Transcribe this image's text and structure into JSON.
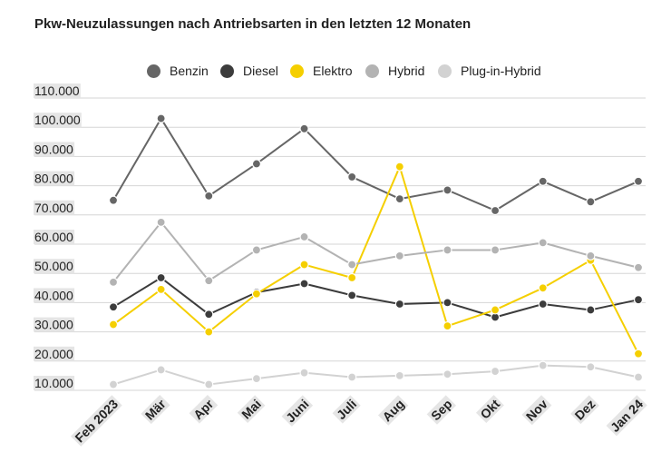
{
  "chart_data": {
    "type": "line",
    "title": "Pkw-Neuzulassungen nach Antriebsarten in den letzten 12 Monaten",
    "categories": [
      "Feb 2023",
      "Mär",
      "Apr",
      "Mai",
      "Juni",
      "Juli",
      "Aug",
      "Sep",
      "Okt",
      "Nov",
      "Dez",
      "Jan 24"
    ],
    "yticks": [
      "10.000",
      "20.000",
      "30.000",
      "40.000",
      "50.000",
      "60.000",
      "70.000",
      "80.000",
      "90.000",
      "100.000",
      "110.000"
    ],
    "ylim": [
      10000,
      110000
    ],
    "grid": true,
    "legend_position": "top",
    "series": [
      {
        "name": "Benzin",
        "color": "#666666",
        "values": [
          75000,
          103000,
          76500,
          87500,
          99500,
          83000,
          75500,
          78500,
          71500,
          81500,
          74500,
          81500
        ]
      },
      {
        "name": "Diesel",
        "color": "#3c3c3c",
        "values": [
          38500,
          48500,
          36000,
          43500,
          46500,
          42500,
          39500,
          40000,
          35000,
          39500,
          37500,
          41000
        ]
      },
      {
        "name": "Elektro",
        "color": "#f5cf00",
        "values": [
          32500,
          44500,
          30000,
          43000,
          53000,
          48500,
          86500,
          32000,
          37500,
          45000,
          54500,
          22500
        ]
      },
      {
        "name": "Hybrid",
        "color": "#b3b3b3",
        "values": [
          47000,
          67500,
          47500,
          58000,
          62500,
          53000,
          56000,
          58000,
          58000,
          60500,
          56000,
          52000
        ]
      },
      {
        "name": "Plug-in-Hybrid",
        "color": "#d2d2d2",
        "values": [
          12000,
          17000,
          12000,
          14000,
          16000,
          14500,
          15000,
          15500,
          16500,
          18500,
          18000,
          14500
        ]
      }
    ]
  }
}
